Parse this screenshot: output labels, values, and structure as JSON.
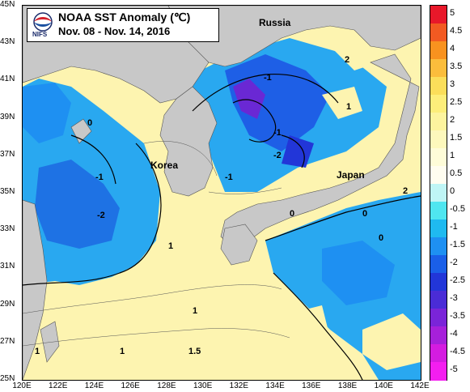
{
  "title": "NOAA SST Anomaly (℃)",
  "date_range": "Nov. 08 - Nov. 14, 2016",
  "logo_text": "NIFS",
  "place_labels": {
    "russia": "Russia",
    "korea": "Korea",
    "japan": "Japan"
  },
  "lat_labels": [
    "45N",
    "43N",
    "41N",
    "39N",
    "37N",
    "35N",
    "33N",
    "31N",
    "29N",
    "27N",
    "25N"
  ],
  "lon_labels": [
    "120E",
    "122E",
    "124E",
    "126E",
    "128E",
    "130E",
    "132E",
    "134E",
    "136E",
    "138E",
    "140E",
    "142E"
  ],
  "contour_labels": [
    "-1",
    "0",
    "-2",
    "1",
    "-1",
    "2",
    "0",
    "-1",
    "1",
    "1.5",
    "1",
    "0",
    "-1",
    "-2",
    "2",
    "1",
    "0",
    "1"
  ],
  "colorbar": {
    "labels": [
      "5",
      "4.5",
      "4",
      "3.5",
      "3",
      "2.5",
      "2",
      "1.5",
      "1",
      "0.5",
      "0",
      "-0.5",
      "-1",
      "-1.5",
      "-2",
      "-2.5",
      "-3",
      "-3.5",
      "-4",
      "-4.5",
      "-5"
    ],
    "colors": [
      "#e8182a",
      "#f25a22",
      "#f8921f",
      "#fbbd3c",
      "#fbde5a",
      "#fdee7a",
      "#fdf49e",
      "#fdf8bc",
      "#fefcd8",
      "#fffdf0",
      "#bff5f5",
      "#4fe6f0",
      "#1fbaf0",
      "#1e90f2",
      "#1a5fe8",
      "#2236d8",
      "#4a2cd6",
      "#7a24d8",
      "#a620da",
      "#d41ce0",
      "#f41ef0"
    ]
  },
  "colors": {
    "land": "#c8c8c8",
    "positive_anomaly": "#fdf4b0",
    "negative_anomaly": "#29a8f0",
    "strong_negative": "#2a3fd6"
  }
}
